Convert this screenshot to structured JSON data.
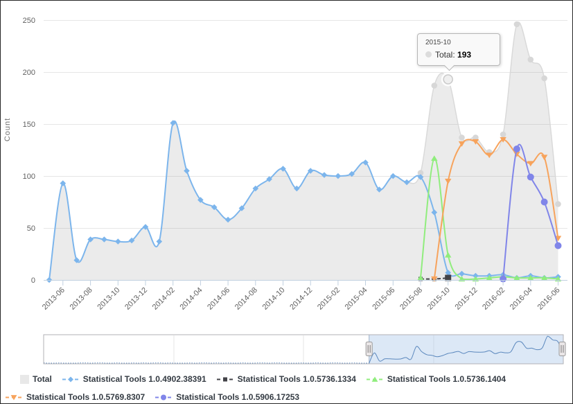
{
  "chart_data": {
    "type": "line",
    "title": "",
    "ylabel": "Count",
    "ylim": [
      0,
      250
    ],
    "yticks": [
      0,
      50,
      100,
      150,
      200,
      250
    ],
    "grid": true,
    "legend_position": "bottom",
    "xtick_labels": [
      "2013-06",
      "2013-08",
      "2013-10",
      "2013-12",
      "2014-02",
      "2014-04",
      "2014-06",
      "2014-08",
      "2014-10",
      "2014-12",
      "2015-02",
      "2015-04",
      "2015-06",
      "2015-08",
      "2015-10",
      "2015-12",
      "2016-02",
      "2016-04",
      "2016-06"
    ],
    "categories": [
      "2013-05",
      "2013-06",
      "2013-07",
      "2013-08",
      "2013-09",
      "2013-10",
      "2013-11",
      "2013-12",
      "2014-01",
      "2014-02",
      "2014-03",
      "2014-04",
      "2014-05",
      "2014-06",
      "2014-07",
      "2014-08",
      "2014-09",
      "2014-10",
      "2014-11",
      "2014-12",
      "2015-01",
      "2015-02",
      "2015-03",
      "2015-04",
      "2015-05",
      "2015-06",
      "2015-07",
      "2015-08",
      "2015-09",
      "2015-10",
      "2015-11",
      "2015-12",
      "2016-01",
      "2016-02",
      "2016-03",
      "2016-04",
      "2016-05",
      "2016-06"
    ],
    "series": [
      {
        "name": "Total",
        "type": "area",
        "color": "#e8e8e8",
        "line_color": "#d9d9d9",
        "fill": "rgba(128,128,128,0.16)",
        "marker": "circle",
        "marker_from": 27,
        "values": [
          0,
          93,
          19,
          39,
          39,
          37,
          38,
          51,
          37,
          151,
          105,
          77,
          70,
          58,
          69,
          88,
          97,
          107,
          88,
          105,
          101,
          100,
          102,
          113,
          87,
          100,
          94,
          103,
          187,
          193,
          137,
          137,
          123,
          140,
          246,
          212,
          194,
          73
        ]
      },
      {
        "name": "Statistical Tools 1.0.4902.38391",
        "type": "spline",
        "color": "#7cb5ec",
        "marker": "diamond",
        "values": [
          0,
          93,
          19,
          39,
          39,
          37,
          38,
          51,
          37,
          151,
          105,
          77,
          70,
          58,
          69,
          88,
          97,
          107,
          88,
          105,
          101,
          100,
          102,
          113,
          87,
          100,
          94,
          99,
          65,
          7,
          6,
          4,
          4,
          5,
          2,
          4,
          2,
          3
        ]
      },
      {
        "name": "Statistical Tools 1.0.5736.1334",
        "type": "spline",
        "color": "#434348",
        "marker": "square",
        "dashed": true,
        "emphasize_last": true,
        "values": [
          null,
          null,
          null,
          null,
          null,
          null,
          null,
          null,
          null,
          null,
          null,
          null,
          null,
          null,
          null,
          null,
          null,
          null,
          null,
          null,
          null,
          null,
          null,
          null,
          null,
          null,
          null,
          1,
          1,
          2,
          null,
          null,
          null,
          null,
          null,
          null,
          null,
          null
        ]
      },
      {
        "name": "Statistical Tools 1.0.5736.1404",
        "type": "spline",
        "color": "#90ed7d",
        "marker": "triangle",
        "values": [
          null,
          null,
          null,
          null,
          null,
          null,
          null,
          null,
          null,
          null,
          null,
          null,
          null,
          null,
          null,
          null,
          null,
          null,
          null,
          null,
          null,
          null,
          null,
          null,
          null,
          null,
          null,
          2,
          117,
          24,
          1,
          1,
          2,
          3,
          2,
          2,
          2,
          1
        ]
      },
      {
        "name": "Statistical Tools 1.0.5769.8307",
        "type": "spline",
        "color": "#f7a35c",
        "marker": "triangle-down",
        "values": [
          null,
          null,
          null,
          null,
          null,
          null,
          null,
          null,
          null,
          null,
          null,
          null,
          null,
          null,
          null,
          null,
          null,
          null,
          null,
          null,
          null,
          null,
          null,
          null,
          null,
          null,
          null,
          null,
          1,
          95,
          131,
          133,
          120,
          135,
          121,
          112,
          118,
          40
        ]
      },
      {
        "name": "Statistical Tools 1.0.5906.17253",
        "type": "spline",
        "color": "#8085e9",
        "marker": "circle",
        "values": [
          null,
          null,
          null,
          null,
          null,
          null,
          null,
          null,
          null,
          null,
          null,
          null,
          null,
          null,
          null,
          null,
          null,
          null,
          null,
          null,
          null,
          null,
          null,
          null,
          null,
          null,
          null,
          null,
          null,
          null,
          null,
          null,
          null,
          1,
          126,
          99,
          75,
          33
        ]
      }
    ]
  },
  "tooltip": {
    "header": "2015-10",
    "series": "Total",
    "label": "Total:",
    "value": "193",
    "point_index": 29
  },
  "navigator": {
    "pre_count": 62,
    "selection_start_index": 62,
    "accent_fill": "rgba(155,190,230,0.35)",
    "line_color": "#5a87bd"
  }
}
